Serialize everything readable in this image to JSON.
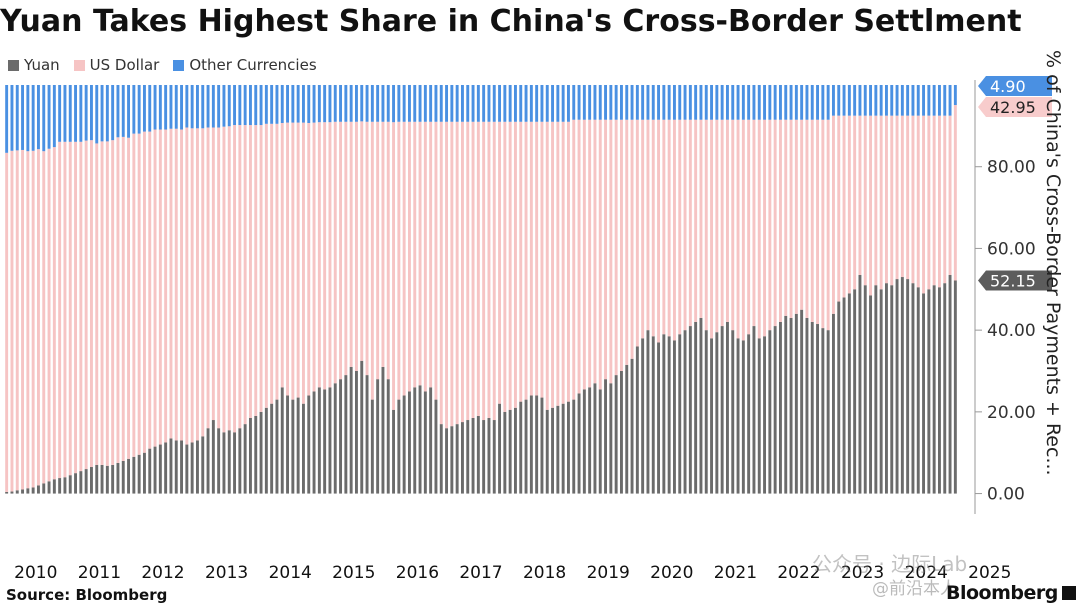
{
  "title": "Yuan Takes Highest Share in China's Cross-Border Settlment",
  "source": "Source: Bloomberg",
  "brand": "Bloomberg",
  "watermark": "公众号 · 边际Lab",
  "watermark2": "@前沿本人",
  "colors": {
    "yuan": "#6b6b6b",
    "usd": "#f6c4c4",
    "other": "#4a90e2",
    "yuan_tag": "#5c5c5c",
    "usd_tag": "#f8cccc",
    "other_tag": "#4a90e2"
  },
  "chart_data": {
    "type": "bar",
    "stacked": true,
    "normalized": true,
    "ylabel": "% of China's Cross-Border Payments + Rec...",
    "ylim": [
      -5,
      100
    ],
    "yticks": [
      0,
      20,
      40,
      60,
      80
    ],
    "ytick_labels": [
      "0.00",
      "20.00",
      "40.00",
      "60.00",
      "80.00"
    ],
    "x_labels": [
      "2010",
      "2011",
      "2012",
      "2013",
      "2014",
      "2015",
      "2016",
      "2017",
      "2018",
      "2019",
      "2020",
      "2021",
      "2022",
      "2023",
      "2024",
      "2025"
    ],
    "start": "2010-01",
    "legend": [
      "Yuan",
      "US Dollar",
      "Other Currencies"
    ],
    "legend_position": "top-left",
    "latest_labels": {
      "yuan": "52.15",
      "usd": "42.95",
      "other": "4.90"
    },
    "series": [
      {
        "name": "Yuan",
        "values": [
          0.4,
          0.5,
          0.8,
          1.0,
          1.3,
          1.5,
          2.0,
          2.5,
          3.0,
          3.5,
          3.8,
          4.0,
          4.5,
          5.0,
          5.5,
          6.0,
          6.5,
          7.0,
          7.0,
          6.8,
          7.0,
          7.5,
          8.0,
          8.5,
          9.0,
          9.5,
          10.0,
          11.0,
          11.5,
          12.0,
          12.5,
          13.5,
          13.0,
          13.0,
          12.0,
          12.5,
          13.0,
          14.0,
          16.0,
          18.0,
          16.0,
          15.0,
          15.5,
          15.0,
          16.0,
          17.0,
          18.5,
          19.0,
          20.0,
          21.0,
          22.0,
          23.0,
          26.0,
          24.0,
          23.0,
          23.5,
          22.0,
          24.0,
          25.0,
          26.0,
          25.5,
          26.0,
          27.0,
          28.0,
          29.0,
          31.0,
          30.0,
          32.5,
          29.0,
          23.0,
          28.0,
          31.0,
          28.0,
          20.5,
          23.0,
          24.0,
          25.0,
          26.0,
          26.5,
          25.0,
          26.0,
          23.0,
          17.0,
          16.0,
          16.5,
          17.0,
          17.5,
          18.0,
          18.5,
          19.0,
          18.0,
          18.5,
          18.0,
          22.0,
          20.0,
          20.5,
          21.0,
          22.5,
          23.0,
          24.0,
          24.0,
          23.5,
          20.5,
          21.0,
          21.5,
          22.0,
          22.5,
          23.0,
          24.5,
          25.5,
          26.0,
          27.0,
          25.5,
          28.0,
          27.0,
          29.0,
          30.0,
          31.5,
          33.0,
          36.0,
          38.0,
          40.0,
          38.5,
          37.0,
          39.0,
          38.5,
          37.5,
          39.0,
          40.0,
          41.0,
          42.0,
          43.0,
          40.0,
          38.0,
          39.5,
          41.0,
          42.0,
          40.0,
          38.0,
          37.5,
          39.0,
          41.0,
          38.0,
          38.5,
          40.0,
          41.0,
          42.0,
          43.5,
          43.0,
          44.0,
          45.0,
          43.0,
          42.0,
          41.5,
          40.5,
          40.0,
          44.0,
          47.0,
          48.0,
          49.0,
          50.0,
          53.5,
          51.0,
          48.5,
          51.0,
          50.0,
          51.5,
          51.0,
          52.5,
          53.0,
          52.5,
          51.5,
          50.5,
          49.0,
          50.0,
          51.0,
          50.5,
          51.5,
          53.5,
          52.15
        ]
      },
      {
        "name": "US Dollar",
        "values": [
          83.0,
          83.4,
          83.2,
          83.1,
          82.5,
          82.4,
          82.3,
          81.3,
          81.4,
          81.3,
          82.3,
          82.1,
          81.6,
          81.1,
          80.6,
          80.4,
          80.0,
          78.7,
          79.2,
          79.4,
          79.5,
          79.7,
          79.3,
          78.6,
          79.1,
          78.6,
          78.6,
          77.6,
          77.6,
          77.1,
          76.6,
          75.8,
          76.3,
          76.1,
          77.6,
          76.9,
          76.4,
          75.4,
          73.6,
          71.6,
          73.6,
          74.8,
          74.4,
          75.2,
          74.2,
          73.2,
          71.7,
          71.2,
          70.2,
          69.5,
          68.5,
          67.5,
          64.7,
          66.8,
          67.8,
          67.3,
          68.8,
          66.7,
          65.8,
          64.9,
          65.4,
          64.9,
          64.0,
          63.0,
          62.0,
          60.0,
          61.0,
          58.6,
          62.0,
          68.0,
          63.0,
          60.0,
          63.0,
          70.4,
          68.0,
          67.0,
          66.0,
          65.0,
          64.5,
          66.0,
          65.0,
          68.0,
          74.0,
          75.0,
          74.5,
          74.0,
          73.5,
          73.0,
          72.5,
          72.0,
          73.0,
          72.5,
          73.0,
          69.0,
          71.0,
          70.5,
          70.0,
          68.5,
          68.0,
          67.0,
          67.0,
          67.5,
          70.5,
          70.0,
          69.5,
          69.0,
          68.5,
          68.5,
          67.0,
          66.0,
          65.5,
          64.5,
          66.0,
          63.5,
          64.5,
          62.5,
          61.5,
          60.0,
          58.5,
          55.5,
          53.5,
          51.5,
          53.0,
          54.5,
          52.5,
          53.0,
          54.0,
          52.5,
          51.5,
          50.5,
          49.5,
          48.5,
          51.5,
          53.5,
          52.0,
          50.5,
          49.5,
          51.5,
          53.5,
          54.0,
          52.5,
          50.5,
          53.5,
          53.0,
          51.5,
          50.5,
          49.5,
          48.0,
          48.5,
          47.5,
          46.5,
          48.5,
          49.5,
          50.0,
          51.0,
          51.5,
          48.5,
          45.5,
          44.5,
          43.5,
          42.5,
          39.0,
          41.5,
          44.0,
          41.5,
          42.5,
          41.0,
          41.5,
          40.0,
          39.5,
          40.0,
          41.0,
          42.0,
          43.5,
          42.5,
          41.5,
          42.0,
          41.0,
          39.0,
          42.95
        ]
      },
      {
        "name": "Other Currencies",
        "values": [
          16.6,
          16.1,
          16.0,
          15.9,
          16.2,
          16.1,
          15.7,
          16.2,
          15.6,
          15.2,
          13.9,
          13.9,
          13.9,
          13.9,
          13.9,
          13.6,
          13.5,
          14.3,
          13.8,
          13.8,
          13.5,
          12.8,
          12.7,
          12.9,
          11.9,
          11.9,
          11.4,
          11.4,
          10.9,
          10.9,
          10.9,
          10.7,
          10.7,
          10.9,
          10.4,
          10.6,
          10.6,
          10.6,
          10.4,
          10.4,
          10.4,
          10.2,
          10.1,
          9.8,
          9.8,
          9.8,
          9.8,
          9.8,
          9.8,
          9.5,
          9.5,
          9.5,
          9.3,
          9.2,
          9.2,
          9.2,
          9.2,
          9.3,
          9.2,
          9.1,
          9.1,
          9.1,
          9.0,
          9.0,
          9.0,
          9.0,
          9.0,
          8.9,
          9.0,
          9.0,
          9.0,
          9.0,
          9.0,
          9.1,
          9.0,
          9.0,
          9.0,
          9.0,
          9.0,
          9.0,
          9.0,
          9.0,
          9.0,
          9.0,
          9.0,
          9.0,
          9.0,
          9.0,
          9.0,
          9.0,
          9.0,
          9.0,
          9.0,
          9.0,
          9.0,
          9.0,
          9.0,
          9.0,
          9.0,
          9.0,
          9.0,
          9.0,
          9.0,
          9.0,
          9.0,
          9.0,
          9.0,
          8.5,
          8.5,
          8.5,
          8.5,
          8.5,
          8.5,
          8.5,
          8.5,
          8.5,
          8.5,
          8.5,
          8.5,
          8.5,
          8.5,
          8.5,
          8.5,
          8.5,
          8.5,
          8.5,
          8.5,
          8.5,
          8.5,
          8.5,
          8.5,
          8.5,
          8.5,
          8.5,
          8.5,
          8.5,
          8.5,
          8.5,
          8.5,
          8.5,
          8.5,
          8.5,
          8.5,
          8.5,
          8.5,
          8.5,
          8.5,
          8.5,
          8.5,
          8.5,
          8.5,
          8.5,
          8.5,
          8.5,
          8.5,
          8.5,
          7.5,
          7.5,
          7.5,
          7.5,
          7.5,
          7.5,
          7.5,
          7.5,
          7.5,
          7.5,
          7.5,
          7.5,
          7.5,
          7.5,
          7.5,
          7.5,
          7.5,
          7.5,
          7.5,
          7.5,
          7.5,
          7.5,
          7.5,
          4.9
        ]
      }
    ]
  }
}
